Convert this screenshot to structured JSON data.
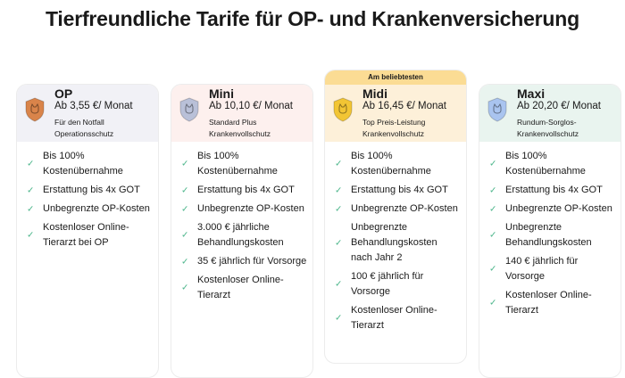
{
  "title": "Tierfreundliche Tarife für OP- und Krankenversicherung",
  "badge": "Am beliebtesten",
  "plans": [
    {
      "name": "OP",
      "price": "Ab 3,55 €/ Monat",
      "desc": "Für den Notfall Operationsschutz",
      "color": "#f1f1f6",
      "shield": "#d9844a",
      "features": [
        "Bis 100% Kostenübernahme",
        "Erstattung bis 4x GOT",
        "Unbegrenzte OP-Kosten",
        "Kostenloser Online-Tierarzt bei OP"
      ]
    },
    {
      "name": "Mini",
      "price": "Ab 10,10 €/ Monat",
      "desc": "Standard Plus Krankenvollschutz",
      "color": "#fdf0ee",
      "shield": "#b9c0d8",
      "features": [
        "Bis 100% Kostenübernahme",
        "Erstattung bis 4x GOT",
        "Unbegrenzte OP-Kosten",
        "3.000 € jährliche Behandlungskosten",
        "35 € jährlich für Vorsorge",
        "Kostenloser Online-Tierarzt"
      ]
    },
    {
      "name": "Midi",
      "price": "Ab 16,45 €/ Monat",
      "desc": "Top Preis-Leistung Krankenvollschutz",
      "color": "#fdf0d9",
      "shield": "#f2c534",
      "features": [
        "Bis 100% Kostenübernahme",
        "Erstattung bis 4x GOT",
        "Unbegrenzte OP-Kosten",
        "Unbegrenzte Behandlungskosten nach Jahr 2",
        "100 € jährlich für Vorsorge",
        "Kostenloser Online-Tierarzt"
      ]
    },
    {
      "name": "Maxi",
      "price": "Ab 20,20 €/ Monat",
      "desc": "Rundum-Sorglos-Krankenvollschutz",
      "color": "#e9f4ef",
      "shield": "#a9c4ef",
      "features": [
        "Bis 100% Kostenübernahme",
        "Erstattung bis 4x GOT",
        "Unbegrenzte OP-Kosten",
        "Unbegrenzte Behandlungskosten",
        "140 € jährlich für Vorsorge",
        "Kostenloser Online-Tierarzt"
      ]
    }
  ]
}
